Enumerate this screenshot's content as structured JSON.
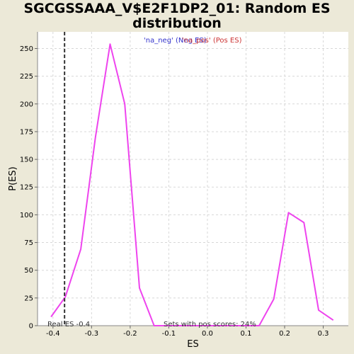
{
  "chart_data": {
    "type": "line",
    "title": "SGCGSSAAA_V$E2F1DP2_01: Random ES distribution",
    "xlabel": "ES",
    "ylabel": "P(ES)",
    "xlim": [
      -0.44,
      0.365
    ],
    "ylim": [
      0,
      265
    ],
    "grid": true,
    "x_ticks": [
      -0.4,
      -0.3,
      -0.2,
      -0.1,
      0.0,
      0.1,
      0.2,
      0.3
    ],
    "x_tick_labels": [
      "-0.4",
      "-0.3",
      "-0.2",
      "-0.1",
      "0.0",
      "0.1",
      "0.2",
      "0.3"
    ],
    "y_ticks": [
      0,
      25,
      50,
      75,
      100,
      125,
      150,
      175,
      200,
      225,
      250
    ],
    "y_tick_labels": [
      "0",
      "25",
      "50",
      "75",
      "100",
      "125",
      "150",
      "175",
      "200",
      "225",
      "250"
    ],
    "legend": [
      {
        "label": "'na_neg' (Neg ES)",
        "color": "#3333cc"
      },
      {
        "label": "'na_pos' (Pos ES)",
        "color": "#cc3333"
      }
    ],
    "series": [
      {
        "name": "Random ES distribution",
        "color": "#ee44ee",
        "x": [
          -0.405,
          -0.368,
          -0.328,
          -0.29,
          -0.252,
          -0.214,
          -0.176,
          -0.138,
          -0.1,
          -0.062,
          -0.024,
          0.014,
          0.052,
          0.09,
          0.134,
          0.172,
          0.21,
          0.25,
          0.288,
          0.326
        ],
        "y": [
          8,
          26,
          69,
          170,
          254,
          200,
          34,
          0,
          0,
          0,
          0,
          0,
          0,
          0,
          0,
          24,
          102,
          93,
          14,
          5
        ]
      }
    ],
    "real_es": -0.37,
    "annotations": {
      "real_es_label": "Real ES -0.4",
      "pos_scores_label": "Sets with pos scores: 24%"
    }
  }
}
